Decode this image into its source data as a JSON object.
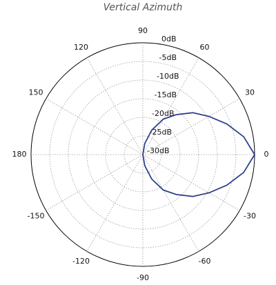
{
  "chart_data": {
    "type": "polar",
    "title": "Vertical Azimuth",
    "angle_ticks": [
      0,
      30,
      60,
      90,
      120,
      150,
      180,
      -150,
      -120,
      -90,
      -60,
      -30
    ],
    "rlim": [
      -30,
      0
    ],
    "rticks": [
      {
        "value": 0,
        "label": "0dB"
      },
      {
        "value": -5,
        "label": "-5dB"
      },
      {
        "value": -10,
        "label": "-10dB"
      },
      {
        "value": -15,
        "label": "-15dB"
      },
      {
        "value": -20,
        "label": "-20dB"
      },
      {
        "value": -25,
        "label": "-25dB"
      },
      {
        "value": -30,
        "label": "-30dB"
      }
    ],
    "grid": true,
    "series": [
      {
        "color": "#2e3f8a",
        "x": [
          -90,
          -80,
          -70,
          -60,
          -50,
          -40,
          -30,
          -20,
          -10,
          0,
          10,
          20,
          30,
          40,
          50,
          60,
          70,
          80,
          90
        ],
        "values": [
          -30,
          -27,
          -23,
          -19,
          -16,
          -12.5,
          -9.5,
          -6,
          -2.5,
          0,
          -2.5,
          -6,
          -9.5,
          -12.5,
          -16,
          -19,
          -23,
          -27,
          -30
        ]
      }
    ]
  }
}
